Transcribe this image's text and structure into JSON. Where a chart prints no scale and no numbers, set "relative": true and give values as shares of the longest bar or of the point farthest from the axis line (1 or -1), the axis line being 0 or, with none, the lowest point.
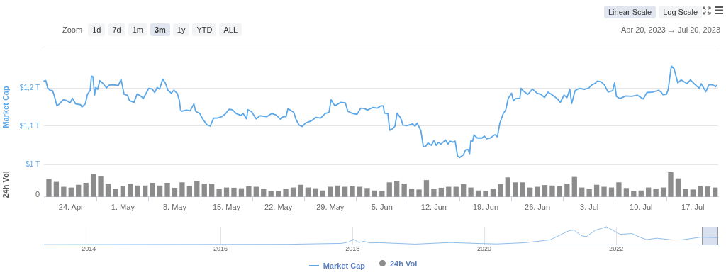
{
  "chart_data": [
    {
      "type": "line",
      "ylabel": "Market Cap",
      "grid": "y",
      "tick_labels": "y",
      "xlim": [
        "2023-04-20T08:00",
        "2023-07-20T10:00"
      ],
      "ylim": [
        1,
        1.3
      ],
      "yticks": [
        {
          "value": 1,
          "label": "$1 T"
        },
        {
          "value": 1.1,
          "label": "$1,1 T"
        },
        {
          "value": 1.2,
          "label": "$1,2 T"
        }
      ],
      "legend": "bottom",
      "annotations": [
        "Zoom",
        "1d",
        "7d",
        "1m",
        "3m",
        "1y",
        "YTD",
        "ALL",
        "Linear Scale",
        "Log Scale",
        "Apr 20, 2023 → Jul 20, 2023"
      ],
      "x": [
        "2023-04-20T08:00",
        "2023-04-20T14:00",
        "2023-04-20T20:00",
        "2023-04-21T03:00",
        "2023-04-21T12:00",
        "2023-04-21T18:00",
        "2023-04-22T02:00",
        "2023-04-22T10:00",
        "2023-04-22T23:00",
        "2023-04-23T09:00",
        "2023-04-23T21:00",
        "2023-04-24T04:00",
        "2023-04-24T15:00",
        "2023-04-25T07:00",
        "2023-04-25T11:00",
        "2023-04-25T22:00",
        "2023-04-26T05:00",
        "2023-04-26T14:00",
        "2023-04-26T18:00",
        "2023-04-26T23:00",
        "2023-04-27T04:00",
        "2023-04-27T08:00",
        "2023-04-27T14:00",
        "2023-04-27T21:00",
        "2023-04-28T07:00",
        "2023-04-28T19:00",
        "2023-04-29T02:00",
        "2023-04-29T18:00",
        "2023-04-30T09:00",
        "2023-04-30T18:00",
        "2023-05-01T04:00",
        "2023-05-01T15:00",
        "2023-05-01T21:00",
        "2023-05-02T12:00",
        "2023-05-02T22:00",
        "2023-05-03T11:00",
        "2023-05-03T18:00",
        "2023-05-04T12:00",
        "2023-05-04T23:00",
        "2023-05-05T07:00",
        "2023-05-05T15:00",
        "2023-05-05T23:00",
        "2023-05-06T09:00",
        "2023-05-06T18:00",
        "2023-05-07T02:00",
        "2023-05-07T13:00",
        "2023-05-07T21:00",
        "2023-05-08T08:00",
        "2023-05-08T15:00",
        "2023-05-08T19:00",
        "2023-05-08T23:00",
        "2023-05-09T14:00",
        "2023-05-10T02:00",
        "2023-05-10T14:00",
        "2023-05-10T20:00",
        "2023-05-11T09:00",
        "2023-05-11T20:00",
        "2023-05-12T08:00",
        "2023-05-12T19:00",
        "2023-05-13T06:00",
        "2023-05-13T18:00",
        "2023-05-14T09:00",
        "2023-05-14T20:00",
        "2023-05-15T08:00",
        "2023-05-15T19:00",
        "2023-05-16T07:00",
        "2023-05-16T22:00",
        "2023-05-17T06:00",
        "2023-05-17T17:00",
        "2023-05-17T21:00",
        "2023-05-18T09:00",
        "2023-05-19T00:00",
        "2023-05-19T12:00",
        "2023-05-20T11:00",
        "2023-05-21T02:00",
        "2023-05-21T17:00",
        "2023-05-22T07:00",
        "2023-05-22T16:00",
        "2023-05-23T01:00",
        "2023-05-23T07:00",
        "2023-05-24T02:00",
        "2023-05-24T09:00",
        "2023-05-24T19:00",
        "2023-05-25T05:00",
        "2023-05-25T16:00",
        "2023-05-26T11:00",
        "2023-05-27T02:00",
        "2023-05-27T17:00",
        "2023-05-28T08:00",
        "2023-05-28T20:00",
        "2023-05-29T03:00",
        "2023-05-29T15:00",
        "2023-05-30T10:00",
        "2023-05-31T01:00",
        "2023-05-31T09:00",
        "2023-06-01T00:00",
        "2023-06-01T15:00",
        "2023-06-02T03:00",
        "2023-06-02T15:00",
        "2023-06-03T00:00",
        "2023-06-03T19:00",
        "2023-06-04T09:00",
        "2023-06-04T20:00",
        "2023-06-05T04:00",
        "2023-06-05T08:00",
        "2023-06-05T19:00",
        "2023-06-06T01:00",
        "2023-06-06T10:00",
        "2023-06-06T18:00",
        "2023-06-07T01:00",
        "2023-06-07T12:00",
        "2023-06-07T20:00",
        "2023-06-08T08:00",
        "2023-06-09T03:00",
        "2023-06-09T11:00",
        "2023-06-09T18:00",
        "2023-06-10T06:00",
        "2023-06-10T14:00",
        "2023-06-10T21:00",
        "2023-06-11T05:00",
        "2023-06-11T16:00",
        "2023-06-12T00:00",
        "2023-06-12T08:00",
        "2023-06-12T15:00",
        "2023-06-12T23:00",
        "2023-06-13T14:00",
        "2023-06-13T22:00",
        "2023-06-14T05:00",
        "2023-06-14T13:00",
        "2023-06-14T21:00",
        "2023-06-15T05:00",
        "2023-06-15T12:00",
        "2023-06-16T00:00",
        "2023-06-16T07:00",
        "2023-06-16T15:00",
        "2023-06-16T20:00",
        "2023-06-17T00:00",
        "2023-06-17T06:00",
        "2023-06-17T10:00",
        "2023-06-17T21:00",
        "2023-06-18T12:00",
        "2023-06-18T20:00",
        "2023-06-19T04:00",
        "2023-06-19T15:00",
        "2023-06-20T06:00",
        "2023-06-20T14:00",
        "2023-06-20T22:00",
        "2023-06-21T09:00",
        "2023-06-21T17:00",
        "2023-06-22T01:00",
        "2023-06-22T12:00",
        "2023-06-22T18:00",
        "2023-06-23T01:00",
        "2023-06-23T15:00",
        "2023-06-23T19:00",
        "2023-06-24T02:00",
        "2023-06-24T17:00",
        "2023-06-25T08:00",
        "2023-06-25T23:00",
        "2023-06-26T11:00",
        "2023-06-26T23:00",
        "2023-06-27T10:00",
        "2023-06-27T22:00",
        "2023-06-28T17:00",
        "2023-06-29T02:00",
        "2023-06-29T14:00",
        "2023-06-30T00:00",
        "2023-06-30T09:00",
        "2023-06-30T15:00",
        "2023-07-01T02:00",
        "2023-07-01T17:00",
        "2023-07-02T08:00",
        "2023-07-02T23:00",
        "2023-07-03T07:00",
        "2023-07-03T19:00",
        "2023-07-04T02:00",
        "2023-07-04T14:00",
        "2023-07-05T01:00",
        "2023-07-05T13:00",
        "2023-07-06T04:00",
        "2023-07-06T10:00",
        "2023-07-06T16:00",
        "2023-07-07T03:00",
        "2023-07-07T22:00",
        "2023-07-08T17:00",
        "2023-07-09T12:00",
        "2023-07-10T07:00",
        "2023-07-10T19:00",
        "2023-07-11T14:00",
        "2023-07-12T09:00",
        "2023-07-12T17:00",
        "2023-07-12T23:00",
        "2023-07-13T10:00",
        "2023-07-13T16:00",
        "2023-07-14T02:00",
        "2023-07-14T11:00",
        "2023-07-14T23:00",
        "2023-07-15T10:00",
        "2023-07-16T05:00",
        "2023-07-16T16:00",
        "2023-07-17T04:00",
        "2023-07-17T21:00",
        "2023-07-18T03:00",
        "2023-07-18T18:00",
        "2023-07-19T04:00",
        "2023-07-19T17:00",
        "2023-07-20T01:00",
        "2023-07-20T05:00"
      ],
      "series": [
        {
          "name": "Market Cap",
          "color": "#5ca7e8",
          "values": [
            1.218,
            1.219,
            1.2,
            1.194,
            1.193,
            1.178,
            1.153,
            1.158,
            1.169,
            1.167,
            1.161,
            1.173,
            1.158,
            1.156,
            1.15,
            1.158,
            1.183,
            1.194,
            1.231,
            1.229,
            1.181,
            1.201,
            1.196,
            1.219,
            1.212,
            1.2,
            1.207,
            1.208,
            1.206,
            1.222,
            1.183,
            1.181,
            1.167,
            1.162,
            1.184,
            1.178,
            1.172,
            1.199,
            1.197,
            1.188,
            1.201,
            1.197,
            1.223,
            1.212,
            1.194,
            1.186,
            1.194,
            1.186,
            1.167,
            1.142,
            1.139,
            1.142,
            1.14,
            1.158,
            1.139,
            1.133,
            1.117,
            1.104,
            1.1,
            1.121,
            1.121,
            1.125,
            1.132,
            1.144,
            1.143,
            1.133,
            1.128,
            1.133,
            1.119,
            1.143,
            1.138,
            1.119,
            1.127,
            1.125,
            1.133,
            1.129,
            1.118,
            1.125,
            1.125,
            1.146,
            1.136,
            1.118,
            1.103,
            1.099,
            1.108,
            1.114,
            1.123,
            1.121,
            1.133,
            1.136,
            1.169,
            1.153,
            1.162,
            1.161,
            1.139,
            1.133,
            1.131,
            1.147,
            1.146,
            1.142,
            1.149,
            1.147,
            1.153,
            1.153,
            1.134,
            1.132,
            1.089,
            1.093,
            1.1,
            1.134,
            1.122,
            1.103,
            1.101,
            1.106,
            1.1,
            1.108,
            1.088,
            1.046,
            1.047,
            1.056,
            1.05,
            1.062,
            1.05,
            1.058,
            1.053,
            1.064,
            1.053,
            1.061,
            1.058,
            1.061,
            1.022,
            1.018,
            1.025,
            1.038,
            1.039,
            1.028,
            1.062,
            1.061,
            1.077,
            1.069,
            1.069,
            1.074,
            1.067,
            1.069,
            1.078,
            1.072,
            1.108,
            1.133,
            1.142,
            1.172,
            1.186,
            1.166,
            1.172,
            1.173,
            1.199,
            1.192,
            1.183,
            1.197,
            1.186,
            1.183,
            1.175,
            1.189,
            1.183,
            1.171,
            1.162,
            1.181,
            1.175,
            1.196,
            1.159,
            1.193,
            1.199,
            1.196,
            1.2,
            1.207,
            1.212,
            1.218,
            1.216,
            1.208,
            1.189,
            1.193,
            1.213,
            1.178,
            1.172,
            1.179,
            1.178,
            1.181,
            1.171,
            1.188,
            1.189,
            1.194,
            1.189,
            1.182,
            1.183,
            1.196,
            1.257,
            1.25,
            1.213,
            1.221,
            1.211,
            1.221,
            1.211,
            1.199,
            1.211,
            1.19,
            1.208,
            1.208,
            1.203,
            1.207
          ]
        }
      ]
    },
    {
      "type": "bar",
      "ylabel": "24h Vol",
      "relative": true,
      "legend": "bottom",
      "annotations": [
        "0"
      ],
      "xlim": [
        "2023-04-20T08:00",
        "2023-07-20T10:00"
      ],
      "xticks": [
        {
          "value": "2023-04-24",
          "label": "24. Apr"
        },
        {
          "value": "2023-05-01",
          "label": "1. May"
        },
        {
          "value": "2023-05-08",
          "label": "8. May"
        },
        {
          "value": "2023-05-15",
          "label": "15. May"
        },
        {
          "value": "2023-05-22",
          "label": "22. May"
        },
        {
          "value": "2023-05-29",
          "label": "29. May"
        },
        {
          "value": "2023-06-05",
          "label": "5. Jun"
        },
        {
          "value": "2023-06-12",
          "label": "12. Jun"
        },
        {
          "value": "2023-06-19",
          "label": "19. Jun"
        },
        {
          "value": "2023-06-26",
          "label": "26. Jun"
        },
        {
          "value": "2023-07-03",
          "label": "3. Jul"
        },
        {
          "value": "2023-07-10",
          "label": "10. Jul"
        },
        {
          "value": "2023-07-17",
          "label": "17. Jul"
        }
      ],
      "x": [
        "2023-04-21",
        "2023-04-22",
        "2023-04-23",
        "2023-04-24",
        "2023-04-25",
        "2023-04-26",
        "2023-04-27",
        "2023-04-28",
        "2023-04-29",
        "2023-04-30",
        "2023-05-01",
        "2023-05-02",
        "2023-05-03",
        "2023-05-04",
        "2023-05-05",
        "2023-05-06",
        "2023-05-07",
        "2023-05-08",
        "2023-05-09",
        "2023-05-10",
        "2023-05-11",
        "2023-05-12",
        "2023-05-13",
        "2023-05-14",
        "2023-05-15",
        "2023-05-16",
        "2023-05-17",
        "2023-05-18",
        "2023-05-19",
        "2023-05-20",
        "2023-05-21",
        "2023-05-22",
        "2023-05-23",
        "2023-05-24",
        "2023-05-25",
        "2023-05-26",
        "2023-05-27",
        "2023-05-28",
        "2023-05-29",
        "2023-05-30",
        "2023-05-31",
        "2023-06-01",
        "2023-06-02",
        "2023-06-03",
        "2023-06-04",
        "2023-06-05",
        "2023-06-06",
        "2023-06-07",
        "2023-06-08",
        "2023-06-09",
        "2023-06-10",
        "2023-06-11",
        "2023-06-12",
        "2023-06-13",
        "2023-06-14",
        "2023-06-15",
        "2023-06-16",
        "2023-06-17",
        "2023-06-18",
        "2023-06-19",
        "2023-06-20",
        "2023-06-21",
        "2023-06-22",
        "2023-06-23",
        "2023-06-24",
        "2023-06-25",
        "2023-06-26",
        "2023-06-27",
        "2023-06-28",
        "2023-06-29",
        "2023-06-30",
        "2023-07-01",
        "2023-07-02",
        "2023-07-03",
        "2023-07-04",
        "2023-07-05",
        "2023-07-06",
        "2023-07-07",
        "2023-07-08",
        "2023-07-09",
        "2023-07-10",
        "2023-07-11",
        "2023-07-12",
        "2023-07-13",
        "2023-07-14",
        "2023-07-15",
        "2023-07-16",
        "2023-07-17",
        "2023-07-18",
        "2023-07-19",
        "2023-07-20"
      ],
      "series": [
        {
          "name": "24h Vol",
          "color": "#8c8c8c",
          "values": [
            0.73,
            0.61,
            0.41,
            0.38,
            0.49,
            0.57,
            0.93,
            0.85,
            0.53,
            0.33,
            0.45,
            0.53,
            0.46,
            0.46,
            0.57,
            0.46,
            0.57,
            0.37,
            0.59,
            0.45,
            0.65,
            0.54,
            0.53,
            0.33,
            0.38,
            0.37,
            0.35,
            0.43,
            0.41,
            0.33,
            0.24,
            0.24,
            0.33,
            0.38,
            0.49,
            0.38,
            0.35,
            0.26,
            0.41,
            0.46,
            0.41,
            0.45,
            0.41,
            0.36,
            0.26,
            0.24,
            0.59,
            0.63,
            0.54,
            0.34,
            0.3,
            0.68,
            0.33,
            0.37,
            0.41,
            0.41,
            0.52,
            0.38,
            0.26,
            0.24,
            0.34,
            0.52,
            0.79,
            0.59,
            0.59,
            0.38,
            0.41,
            0.48,
            0.46,
            0.44,
            0.54,
            0.81,
            0.38,
            0.33,
            0.49,
            0.41,
            0.38,
            0.59,
            0.36,
            0.24,
            0.26,
            0.38,
            0.34,
            0.38,
            1,
            0.75,
            0.33,
            0.3,
            0.44,
            0.42,
            0.38
          ]
        }
      ]
    },
    {
      "type": "line",
      "relative": true,
      "grid": "x",
      "xlim": [
        "2013-04-28",
        "2023-07-20"
      ],
      "xticks": [
        {
          "value": "2014",
          "label": "2014"
        },
        {
          "value": "2016",
          "label": "2016"
        },
        {
          "value": "2018",
          "label": "2018"
        },
        {
          "value": "2020",
          "label": "2020"
        },
        {
          "value": "2022",
          "label": "2022"
        }
      ],
      "x": [
        "2013-04-28",
        "2015-01-01",
        "2017-01-01",
        "2017-11-01",
        "2017-12-10",
        "2018-01-07",
        "2018-02-06",
        "2018-03-05",
        "2018-04-06",
        "2018-06-01",
        "2018-12-15",
        "2019-06-26",
        "2019-12-17",
        "2020-03-13",
        "2020-08-15",
        "2020-12-31",
        "2021-02-21",
        "2021-04-14",
        "2021-05-12",
        "2021-06-22",
        "2021-07-20",
        "2021-09-06",
        "2021-11-09",
        "2022-01-22",
        "2022-03-29",
        "2022-05-12",
        "2022-06-18",
        "2022-08-14",
        "2022-11-10",
        "2023-01-01",
        "2023-04-14",
        "2023-07-20"
      ],
      "series": [
        {
          "color": "#8fbde8",
          "values": [
            0,
            0.01,
            0.02,
            0.07,
            0.15,
            0.3,
            0.12,
            0.19,
            0.1,
            0.11,
            0.03,
            0.12,
            0.06,
            0.04,
            0.11,
            0.27,
            0.52,
            0.78,
            0.82,
            0.5,
            0.45,
            0.8,
            1,
            0.58,
            0.62,
            0.42,
            0.28,
            0.36,
            0.26,
            0.27,
            0.42,
            0.4
          ]
        }
      ]
    }
  ]
}
